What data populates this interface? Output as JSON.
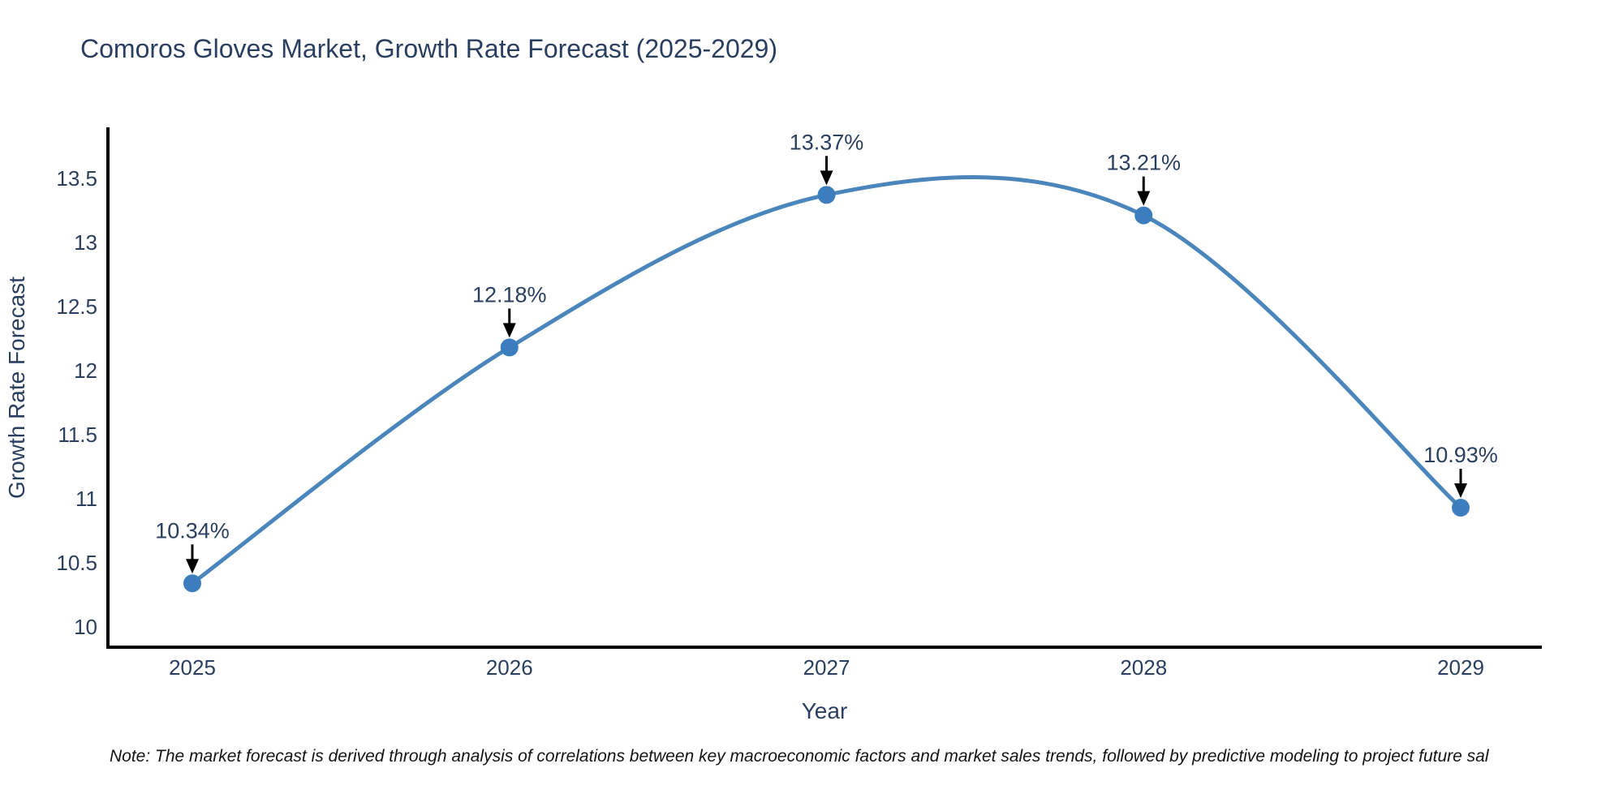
{
  "title": "Comoros Gloves Market, Growth Rate Forecast (2025-2029)",
  "note": "Note: The market forecast is derived through analysis of correlations between key macroeconomic factors and market sales trends, followed by predictive modeling to project future sal",
  "chart_data": {
    "type": "line",
    "title": "Comoros Gloves Market, Growth Rate Forecast (2025-2029)",
    "xlabel": "Year",
    "ylabel": "Growth Rate Forecast",
    "x": [
      2025,
      2026,
      2027,
      2028,
      2029
    ],
    "values": [
      10.34,
      12.18,
      13.37,
      13.21,
      10.93
    ],
    "point_labels": [
      "10.34%",
      "12.18%",
      "13.37%",
      "13.21%",
      "10.93%"
    ],
    "x_tick_labels": [
      "2025",
      "2026",
      "2027",
      "2028",
      "2029"
    ],
    "y_ticks": [
      10,
      10.5,
      11,
      11.5,
      12,
      12.5,
      13,
      13.5
    ],
    "y_tick_labels": [
      "10",
      "10.5",
      "11",
      "11.5",
      "12",
      "12.5",
      "13",
      "13.5"
    ],
    "ylim": [
      9.84,
      13.9
    ],
    "line_shape": "spline",
    "grid": false,
    "legend": "none",
    "colors": {
      "line": "#4a86bc",
      "marker": "#3c7dbe",
      "axis_line": "#000000",
      "text": "#2a3f5f",
      "arrow": "#000000",
      "background": "#ffffff"
    }
  }
}
